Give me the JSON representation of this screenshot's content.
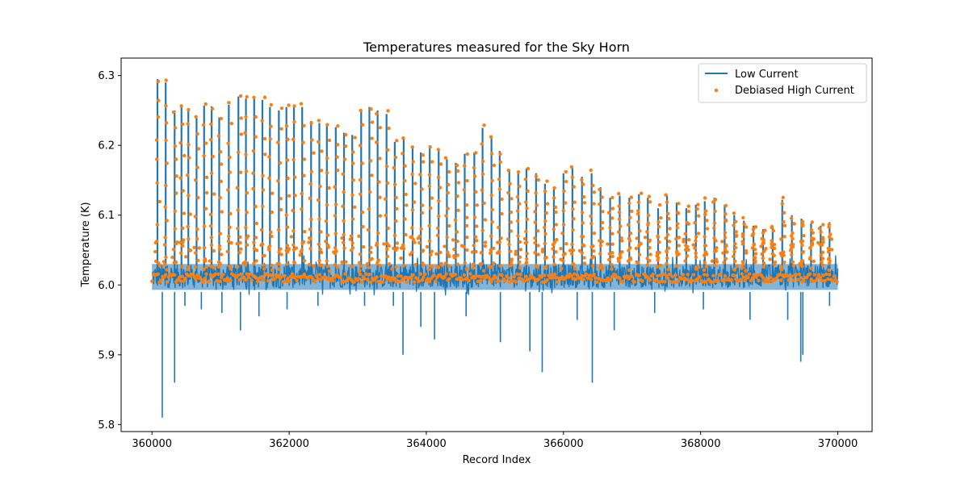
{
  "chart_data": {
    "type": "line",
    "title": "Temperatures measured for the Sky Horn",
    "xlabel": "Record Index",
    "ylabel": "Temperature (K)",
    "xlim": [
      359550,
      370500
    ],
    "ylim": [
      5.79,
      6.325
    ],
    "xticks": [
      360000,
      362000,
      364000,
      366000,
      368000,
      370000
    ],
    "xtick_labels": [
      "360000",
      "362000",
      "364000",
      "366000",
      "368000",
      "370000"
    ],
    "yticks": [
      5.8,
      5.9,
      6.0,
      6.1,
      6.2,
      6.3
    ],
    "ytick_labels": [
      "5.8",
      "5.9",
      "6.0",
      "6.1",
      "6.2",
      "6.3"
    ],
    "grid": false,
    "legend": {
      "position": "top-right",
      "entries": [
        "Low Current",
        "Debiased High Current"
      ]
    },
    "series": [
      {
        "name": "Low Current",
        "kind": "line",
        "color": "#1f77b4",
        "baseline": 6.01,
        "noise_band": [
          5.985,
          6.04
        ],
        "x_range": [
          360000,
          370000
        ],
        "spikes_x": [
          360080,
          360200,
          360330,
          360430,
          360530,
          360650,
          360760,
          360870,
          360980,
          361120,
          361260,
          361370,
          361490,
          361610,
          361720,
          361850,
          361960,
          362070,
          362190,
          362320,
          362440,
          362550,
          362680,
          362800,
          362920,
          363050,
          363170,
          363290,
          363420,
          363540,
          363670,
          363800,
          363920,
          364050,
          364180,
          364300,
          364430,
          364560,
          364700,
          364820,
          364950,
          365070,
          365210,
          365340,
          365460,
          365600,
          365730,
          365860,
          366000,
          366130,
          366270,
          366410,
          366540,
          366680,
          366820,
          366960,
          367100,
          367230,
          367380,
          367510,
          367650,
          367790,
          367930,
          368060,
          368200,
          368350,
          368490,
          368630,
          368770,
          368910,
          369050,
          369190,
          369330,
          369470,
          369610,
          369750,
          369880
        ],
        "spikes_peak": [
          6.295,
          6.29,
          6.25,
          6.257,
          6.252,
          6.24,
          6.257,
          6.256,
          6.24,
          6.258,
          6.27,
          6.267,
          6.27,
          6.265,
          6.255,
          6.25,
          6.255,
          6.255,
          6.255,
          6.235,
          6.232,
          6.228,
          6.226,
          6.218,
          6.215,
          6.252,
          6.255,
          6.25,
          6.245,
          6.205,
          6.21,
          6.198,
          6.19,
          6.2,
          6.192,
          6.18,
          6.175,
          6.188,
          6.19,
          6.225,
          6.21,
          6.192,
          6.165,
          6.16,
          6.167,
          6.16,
          6.145,
          6.14,
          6.16,
          6.168,
          6.155,
          6.16,
          6.14,
          6.125,
          6.128,
          6.125,
          6.13,
          6.125,
          6.11,
          6.128,
          6.118,
          6.11,
          6.115,
          6.12,
          6.125,
          6.115,
          6.1,
          6.092,
          6.085,
          6.08,
          6.085,
          6.122,
          6.1,
          6.095,
          6.088,
          6.085,
          6.09
        ],
        "dips_x": [
          360150,
          360330,
          360480,
          360720,
          361020,
          361290,
          361560,
          361970,
          362420,
          363100,
          363520,
          363660,
          363920,
          364120,
          364580,
          365080,
          365510,
          365690,
          366200,
          366420,
          366740,
          367330,
          368040,
          368720,
          369270,
          369460,
          369490,
          369880
        ],
        "dips_y": [
          5.81,
          5.86,
          5.97,
          5.965,
          5.96,
          5.935,
          5.955,
          5.965,
          5.97,
          5.97,
          5.97,
          5.9,
          5.94,
          5.922,
          5.955,
          5.918,
          5.905,
          5.875,
          5.95,
          5.86,
          5.935,
          5.96,
          5.965,
          5.95,
          5.95,
          5.89,
          5.9,
          5.97
        ]
      },
      {
        "name": "Debiased High Current",
        "kind": "scatter",
        "color": "#ff7f0e",
        "baseline": 6.01,
        "note": "High-current samples track the Low Current spikes; cluster values follow the spike peaks listed for the Low Current series"
      }
    ]
  }
}
